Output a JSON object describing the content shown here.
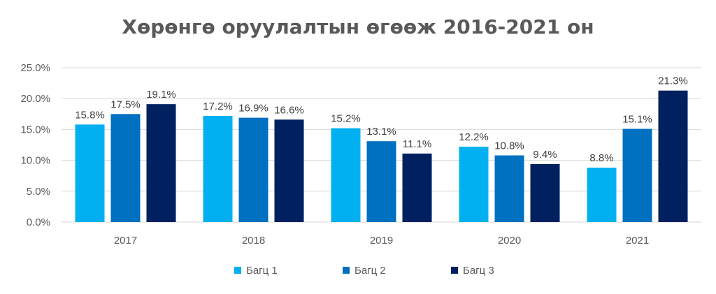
{
  "chart_data": {
    "type": "bar",
    "title": "Хөрөнгө оруулалтын өгөөж 2016-2021 он",
    "categories": [
      "2017",
      "2018",
      "2019",
      "2020",
      "2021"
    ],
    "series": [
      {
        "name": "Багц 1",
        "color": "#00B0F0",
        "values": [
          15.8,
          17.2,
          15.2,
          12.2,
          8.8
        ],
        "labels": [
          "15.8%",
          "17.2%",
          "15.2%",
          "12.2%",
          "8.8%"
        ]
      },
      {
        "name": "Багц 2",
        "color": "#0070C0",
        "values": [
          17.5,
          16.9,
          13.1,
          10.8,
          15.1
        ],
        "labels": [
          "17.5%",
          "16.9%",
          "13.1%",
          "10.8%",
          "15.1%"
        ]
      },
      {
        "name": "Багц 3",
        "color": "#002060",
        "values": [
          19.1,
          16.6,
          11.1,
          9.4,
          21.3
        ],
        "labels": [
          "19.1%",
          "16.6%",
          "11.1%",
          "9.4%",
          "21.3%"
        ]
      }
    ],
    "y_ticks": [
      "0.0%",
      "5.0%",
      "10.0%",
      "15.0%",
      "20.0%",
      "25.0%"
    ],
    "ylim": [
      0,
      25
    ],
    "grid": true,
    "legend_position": "bottom",
    "gridline_color": "#D9D9D9"
  }
}
